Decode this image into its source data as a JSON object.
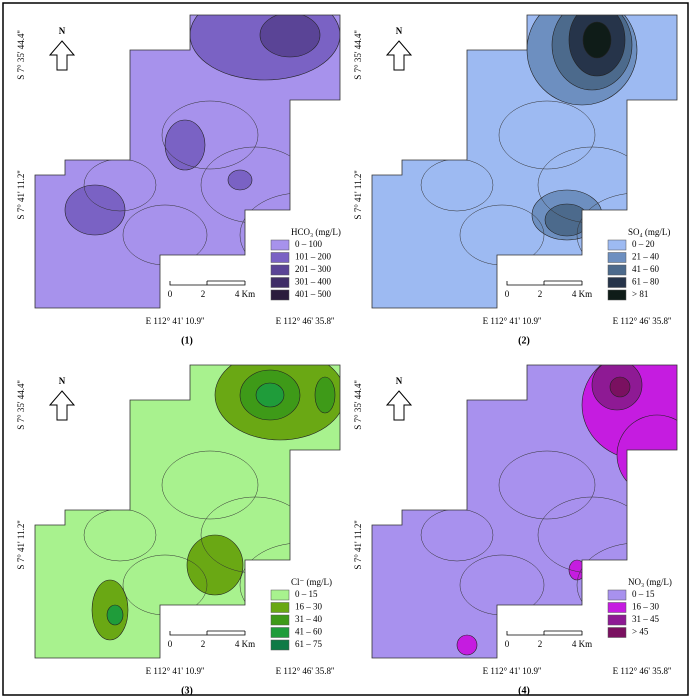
{
  "axes": {
    "lat_top": "S 7° 35' 44.4''",
    "lat_bottom": "S 7° 41' 11.2''",
    "lon_left": "E 112° 41' 10.9''",
    "lon_right": "E 112° 46' 35.8''",
    "north": "N",
    "scale": [
      "0",
      "2",
      "4 Km"
    ]
  },
  "panels": [
    {
      "caption": "(1)",
      "legend_title": "HCO₃ (mg/L)",
      "legend": [
        {
          "label": "0 – 100",
          "color": "#a792ec"
        },
        {
          "label": "101 – 200",
          "color": "#7a62c4"
        },
        {
          "label": "201 – 300",
          "color": "#5a4496"
        },
        {
          "label": "301 – 400",
          "color": "#3f2d66"
        },
        {
          "label": "401 – 500",
          "color": "#2b1c3c"
        }
      ]
    },
    {
      "caption": "(2)",
      "legend_title": "SO₄ (mg/L)",
      "legend": [
        {
          "label": "0 – 20",
          "color": "#9dbaf2"
        },
        {
          "label": "21 – 40",
          "color": "#6d8fc0"
        },
        {
          "label": "41 – 60",
          "color": "#4c6a8c"
        },
        {
          "label": "61 – 80",
          "color": "#26344a"
        },
        {
          "label": "> 81",
          "color": "#0f1c18"
        }
      ]
    },
    {
      "caption": "(3)",
      "legend_title": "Cl⁻ (mg/L)",
      "legend": [
        {
          "label": "0 – 15",
          "color": "#a8f28e"
        },
        {
          "label": "16 – 30",
          "color": "#6aa814"
        },
        {
          "label": "31 – 40",
          "color": "#3e9a18"
        },
        {
          "label": "41 – 60",
          "color": "#1f9c3a"
        },
        {
          "label": "61 – 75",
          "color": "#0e7a46"
        }
      ]
    },
    {
      "caption": "(4)",
      "legend_title": "NO₃ (mg/L)",
      "legend": [
        {
          "label": "0 – 15",
          "color": "#a891ee"
        },
        {
          "label": "16 – 30",
          "color": "#c51ce0"
        },
        {
          "label": "31 – 45",
          "color": "#8e1a94"
        },
        {
          "label": "> 45",
          "color": "#7a1060"
        }
      ]
    }
  ]
}
